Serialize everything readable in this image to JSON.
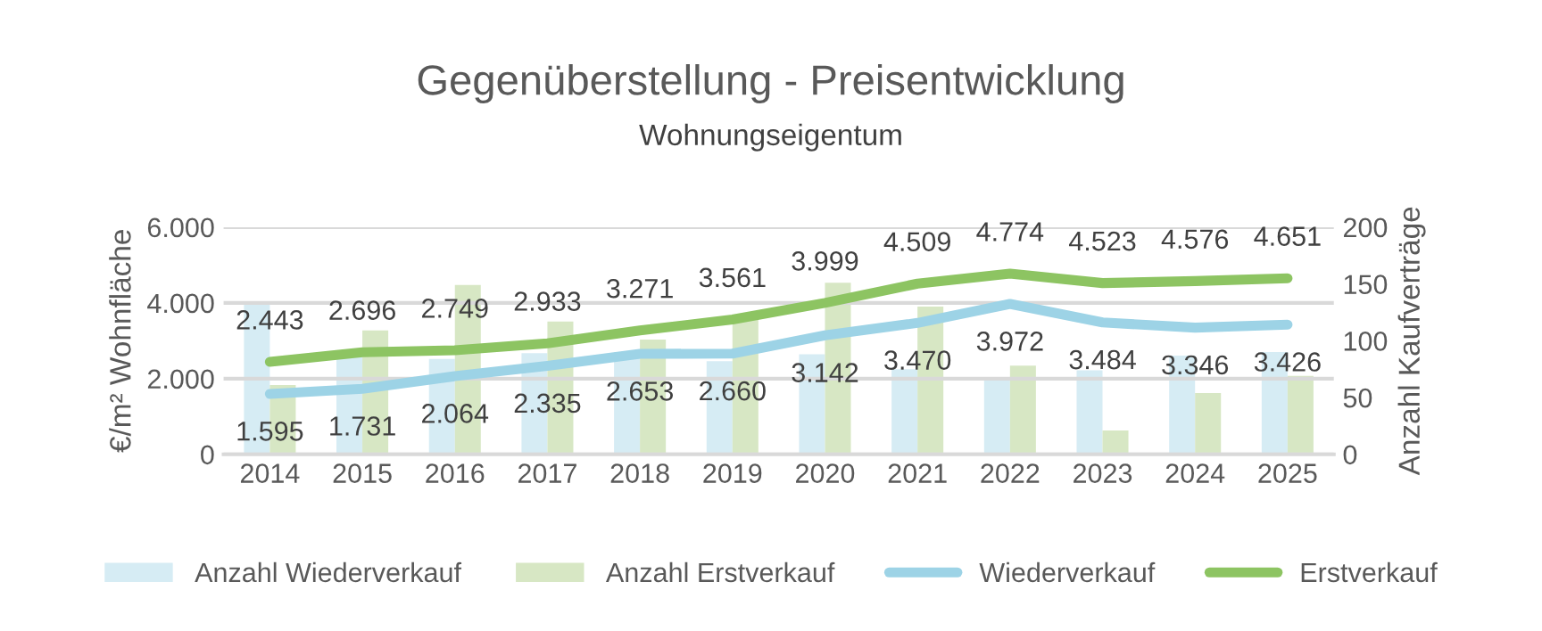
{
  "chart_data": {
    "type": "bar",
    "title": "Gegenüberstellung - Preisentwicklung",
    "subtitle": "Wohnungseigentum",
    "ylabel": "€/m² Wohnfläche",
    "y2label": "Anzahl Kaufverträge",
    "categories": [
      "2014",
      "2015",
      "2016",
      "2017",
      "2018",
      "2019",
      "2020",
      "2021",
      "2022",
      "2023",
      "2024",
      "2025"
    ],
    "series": [
      {
        "name": "Anzahl Wiederverkauf",
        "axis": "y2",
        "color": "#d6ecf4",
        "values": [
          133,
          90,
          84,
          89,
          90,
          82,
          88,
          75,
          67,
          74,
          87,
          90
        ]
      },
      {
        "name": "Anzahl Erstverkauf",
        "axis": "y2",
        "color": "#d7e7c4",
        "values": [
          61,
          109,
          149,
          117,
          101,
          122,
          151,
          130,
          78,
          21,
          54,
          69
        ]
      },
      {
        "name": "Wiederverkauf",
        "type": "line",
        "color": "#9dd3e6",
        "values": [
          1595,
          1731,
          2064,
          2335,
          2653,
          2660,
          3142,
          3470,
          3972,
          3484,
          3346,
          3426
        ],
        "value_labels": [
          "1.595",
          "1.731",
          "2.064",
          "2.335",
          "2.653",
          "2.660",
          "3.142",
          "3.470",
          "3.972",
          "3.484",
          "3.346",
          "3.426"
        ]
      },
      {
        "name": "Erstverkauf",
        "type": "line",
        "color": "#8dc462",
        "values": [
          2443,
          2696,
          2749,
          2933,
          3271,
          3561,
          3999,
          4509,
          4774,
          4523,
          4576,
          4651
        ],
        "value_labels": [
          "2.443",
          "2.696",
          "2.749",
          "2.933",
          "3.271",
          "3.561",
          "3.999",
          "4.509",
          "4.774",
          "4.523",
          "4.576",
          "4.651"
        ]
      }
    ],
    "ylim": [
      0,
      6000
    ],
    "yticks": [
      0,
      {
        "value": 2000,
        "label": "2.000"
      },
      {
        "value": 4000,
        "label": "4.000"
      },
      {
        "value": 6000,
        "label": "6.000"
      }
    ],
    "y2lim": [
      0,
      200
    ],
    "y2ticks": [
      0,
      50,
      100,
      150,
      200
    ],
    "grid": "y",
    "legend": "bottom",
    "marker": "none",
    "line_style": "solid"
  }
}
